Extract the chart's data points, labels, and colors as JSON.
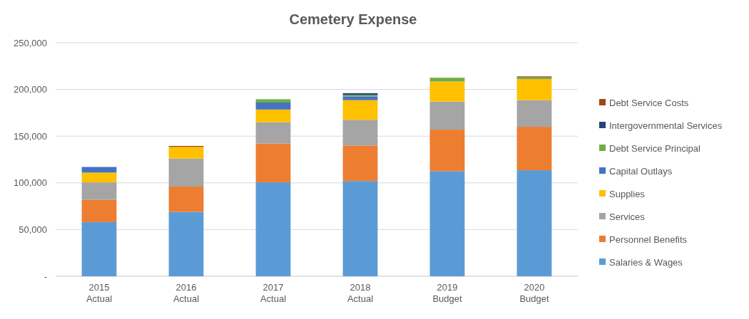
{
  "chart_data": {
    "type": "bar",
    "title": "Cemetery Expense",
    "stacked": true,
    "categories": [
      "2015 Actual",
      "2016 Actual",
      "2017 Actual",
      "2018 Actual",
      "2019 Budget",
      "2020 Budget"
    ],
    "series": [
      {
        "name": "Salaries & Wages",
        "color": "#5b9bd5",
        "values": [
          58000,
          69000,
          100500,
          102000,
          112500,
          113500
        ]
      },
      {
        "name": "Personnel Benefits",
        "color": "#ed7d31",
        "values": [
          24000,
          27000,
          41500,
          38000,
          44500,
          46500
        ]
      },
      {
        "name": "Services",
        "color": "#a5a5a5",
        "values": [
          18500,
          30000,
          23000,
          27500,
          30000,
          28500
        ]
      },
      {
        "name": "Supplies",
        "color": "#ffc000",
        "values": [
          10500,
          12500,
          13500,
          21000,
          21500,
          22500
        ]
      },
      {
        "name": "Capital Outlays",
        "color": "#4472c4",
        "values": [
          6000,
          null,
          7500,
          4000,
          null,
          null
        ]
      },
      {
        "name": "Debt Service Principal",
        "color": "#70ad47",
        "values": [
          null,
          null,
          3500,
          1500,
          4000,
          2000
        ]
      },
      {
        "name": "Intergovernmental Services",
        "color": "#264478",
        "values": [
          null,
          null,
          null,
          2000,
          null,
          null
        ]
      },
      {
        "name": "Debt Service Costs",
        "color": "#9e480e",
        "values": [
          null,
          1000,
          null,
          null,
          null,
          1000
        ]
      }
    ],
    "ylim": [
      0,
      250000
    ],
    "yticks": [
      {
        "value": 0,
        "label": "-"
      },
      {
        "value": 50000,
        "label": "50,000"
      },
      {
        "value": 100000,
        "label": "100,000"
      },
      {
        "value": 150000,
        "label": "150,000"
      },
      {
        "value": 200000,
        "label": "200,000"
      },
      {
        "value": 250000,
        "label": "250,000"
      }
    ],
    "grid": "y",
    "legend": "right"
  }
}
